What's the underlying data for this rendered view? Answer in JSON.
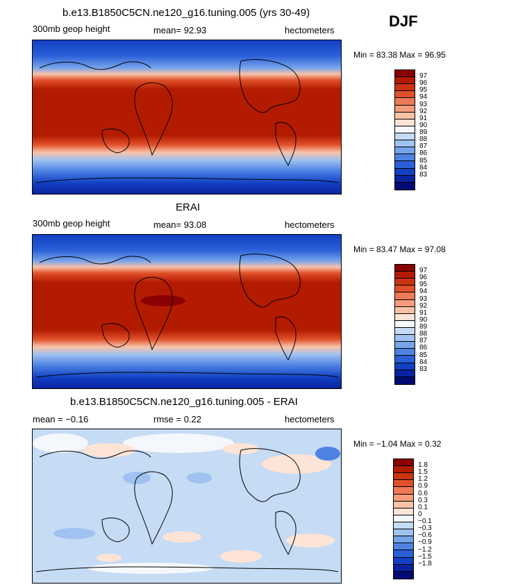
{
  "season": "DJF",
  "panels": [
    {
      "title": "b.e13.B1850C5CN.ne120_g16.tuning.005 (yrs 30-49)",
      "left_label": "300mb geop height",
      "center_label": "mean=  92.93",
      "right_label": "hectometers",
      "minmax": "Min =  83.38 Max =  96.95",
      "colors": [
        "#8b0000",
        "#b31b00",
        "#cc3311",
        "#e0502a",
        "#ee7a55",
        "#f49c7c",
        "#f9c2a8",
        "#fde4d6",
        "#f4f8fc",
        "#c6dbf4",
        "#9fc2f0",
        "#76a4ea",
        "#4e83e4",
        "#2a5fd8",
        "#1240c4",
        "#0a22a0",
        "#030a74"
      ],
      "labels": [
        "97",
        "96",
        "95",
        "94",
        "93",
        "92",
        "91",
        "90",
        "89",
        "88",
        "87",
        "86",
        "85",
        "84",
        "83"
      ]
    },
    {
      "title": "ERAI",
      "left_label": "300mb geop height",
      "center_label": "mean=  93.08",
      "right_label": "hectometers",
      "minmax": "Min =  83.47 Max =  97.08",
      "colors": [
        "#8b0000",
        "#b31b00",
        "#cc3311",
        "#e0502a",
        "#ee7a55",
        "#f49c7c",
        "#f9c2a8",
        "#fde4d6",
        "#f4f8fc",
        "#c6dbf4",
        "#9fc2f0",
        "#76a4ea",
        "#4e83e4",
        "#2a5fd8",
        "#1240c4",
        "#0a22a0",
        "#030a74"
      ],
      "labels": [
        "97",
        "96",
        "95",
        "94",
        "93",
        "92",
        "91",
        "90",
        "89",
        "88",
        "87",
        "86",
        "85",
        "84",
        "83"
      ]
    },
    {
      "title": "b.e13.B1850C5CN.ne120_g16.tuning.005 - ERAI",
      "left_label": "mean =  −0.16",
      "center_label": "rmse =   0.22",
      "right_label": "hectometers",
      "minmax": "Min =  −1.04 Max =   0.32",
      "colors": [
        "#8b0000",
        "#b31b00",
        "#cc3311",
        "#e0502a",
        "#ee7a55",
        "#f49c7c",
        "#f9c2a8",
        "#fde4d6",
        "#f4f8fc",
        "#c6dbf4",
        "#9fc2f0",
        "#76a4ea",
        "#4e83e4",
        "#2a5fd8",
        "#1240c4",
        "#0a22a0",
        "#030a74"
      ],
      "labels": [
        "1.8",
        "1.5",
        "1.2",
        "0.9",
        "0.6",
        "0.3",
        "0.1",
        "0",
        "−0.1",
        "−0.3",
        "−0.6",
        "−0.9",
        "−1.2",
        "−1.5",
        "−1.8"
      ]
    }
  ]
}
